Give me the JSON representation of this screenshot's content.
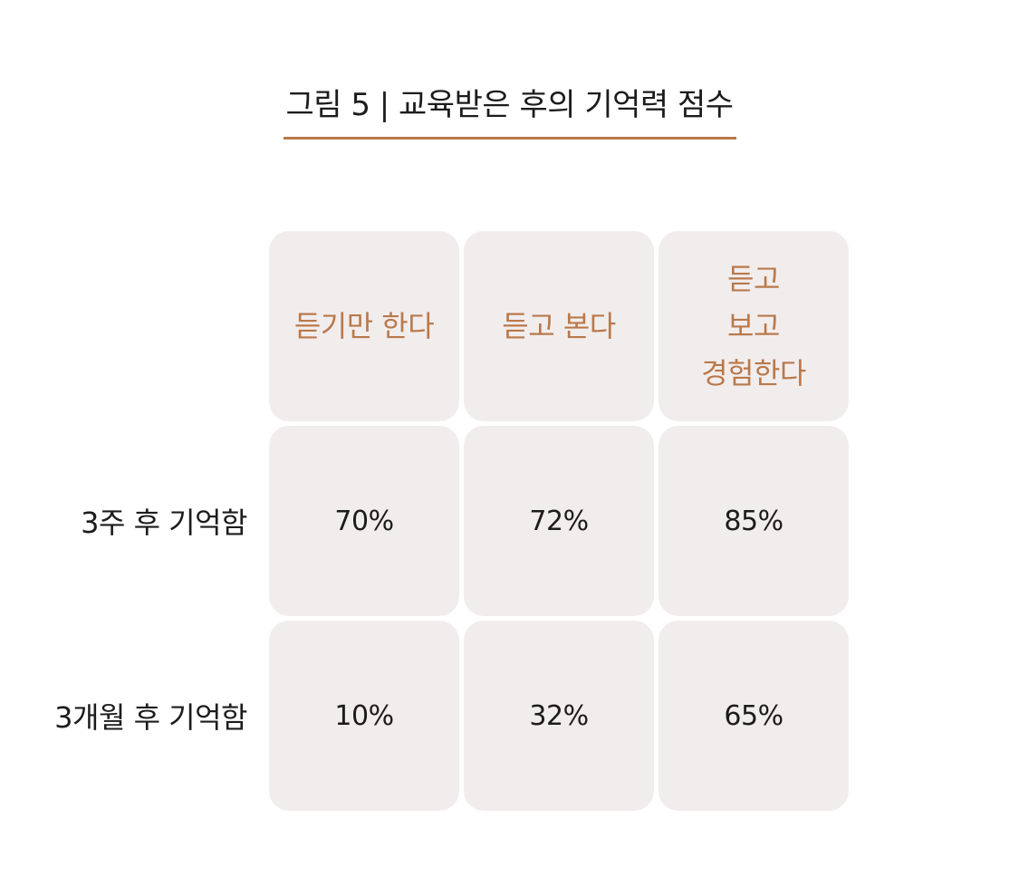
{
  "figure": {
    "title": "그림 5 | 교육받은 후의 기억력 점수"
  },
  "colors": {
    "accent": "#b9794b",
    "cell_bg": "#f2eded",
    "text": "#1c1c1c"
  },
  "chart_data": {
    "type": "table",
    "title": "그림 5 | 교육받은 후의 기억력 점수",
    "columns": [
      [
        "듣기만 한다"
      ],
      [
        "듣고 본다"
      ],
      [
        "듣고",
        "보고",
        "경험한다"
      ]
    ],
    "rows": [
      {
        "label": "3주 후 기억함",
        "values": [
          "70%",
          "72%",
          "85%"
        ]
      },
      {
        "label": "3개월 후 기억함",
        "values": [
          "10%",
          "32%",
          "65%"
        ]
      }
    ]
  }
}
